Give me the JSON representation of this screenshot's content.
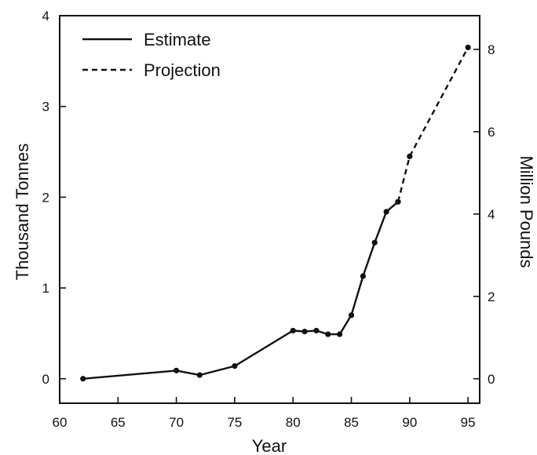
{
  "chart_data": {
    "type": "line",
    "xlabel": "Year",
    "ylabel": "Thousand Tonnes",
    "y2label": "Million Pounds",
    "xlim": [
      60,
      96
    ],
    "ylim": [
      -0.27,
      4
    ],
    "y2lim": [
      -0.595,
      8.818
    ],
    "x_ticks": [
      "60",
      "65",
      "70",
      "75",
      "80",
      "85",
      "90",
      "95"
    ],
    "y_ticks": [
      "0",
      "1",
      "2",
      "3",
      "4"
    ],
    "y2_ticks": [
      "0",
      "2",
      "4",
      "6",
      "8"
    ],
    "legend": {
      "position": "top-left",
      "entries": [
        {
          "label": "Estimate",
          "style": "solid"
        },
        {
          "label": "Projection",
          "style": "dashed"
        }
      ]
    },
    "series": [
      {
        "name": "Estimate",
        "style": "solid",
        "points": [
          {
            "x": 62,
            "y": 0.0
          },
          {
            "x": 70,
            "y": 0.09
          },
          {
            "x": 72,
            "y": 0.04
          },
          {
            "x": 75,
            "y": 0.14
          },
          {
            "x": 80,
            "y": 0.53
          },
          {
            "x": 81,
            "y": 0.52
          },
          {
            "x": 82,
            "y": 0.53
          },
          {
            "x": 83,
            "y": 0.49
          },
          {
            "x": 84,
            "y": 0.49
          },
          {
            "x": 85,
            "y": 0.7
          },
          {
            "x": 86,
            "y": 1.13
          },
          {
            "x": 87,
            "y": 1.5
          },
          {
            "x": 88,
            "y": 1.84
          },
          {
            "x": 89,
            "y": 1.95
          }
        ]
      },
      {
        "name": "Projection",
        "style": "dashed",
        "points": [
          {
            "x": 89,
            "y": 1.95
          },
          {
            "x": 90,
            "y": 2.45
          },
          {
            "x": 95,
            "y": 3.65
          }
        ]
      }
    ]
  }
}
